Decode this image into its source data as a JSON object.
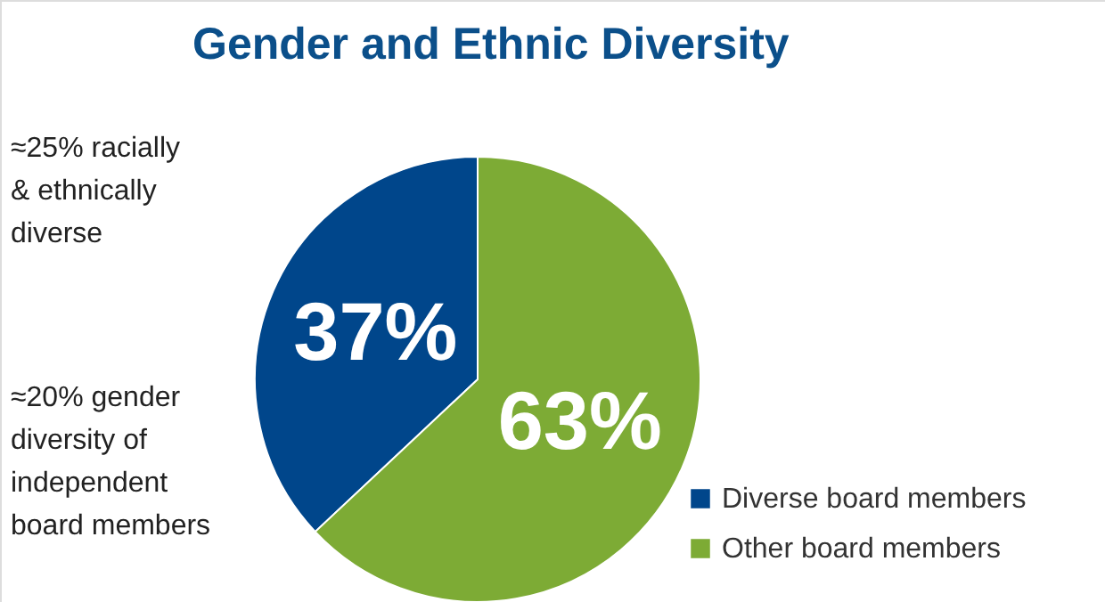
{
  "chart_data": {
    "type": "pie",
    "title": "Gender and Ethnic Diversity",
    "categories": [
      "Diverse board members",
      "Other board members"
    ],
    "values": [
      37,
      63
    ],
    "colors": [
      "#00468b",
      "#7dab35"
    ],
    "value_labels": [
      "37%",
      "63%"
    ],
    "legend": "bottom right",
    "annotations": [
      "≈25% racially\n& ethnically\ndiverse",
      "≈20% gender\ndiversity of\nindependent\nboard members"
    ]
  }
}
